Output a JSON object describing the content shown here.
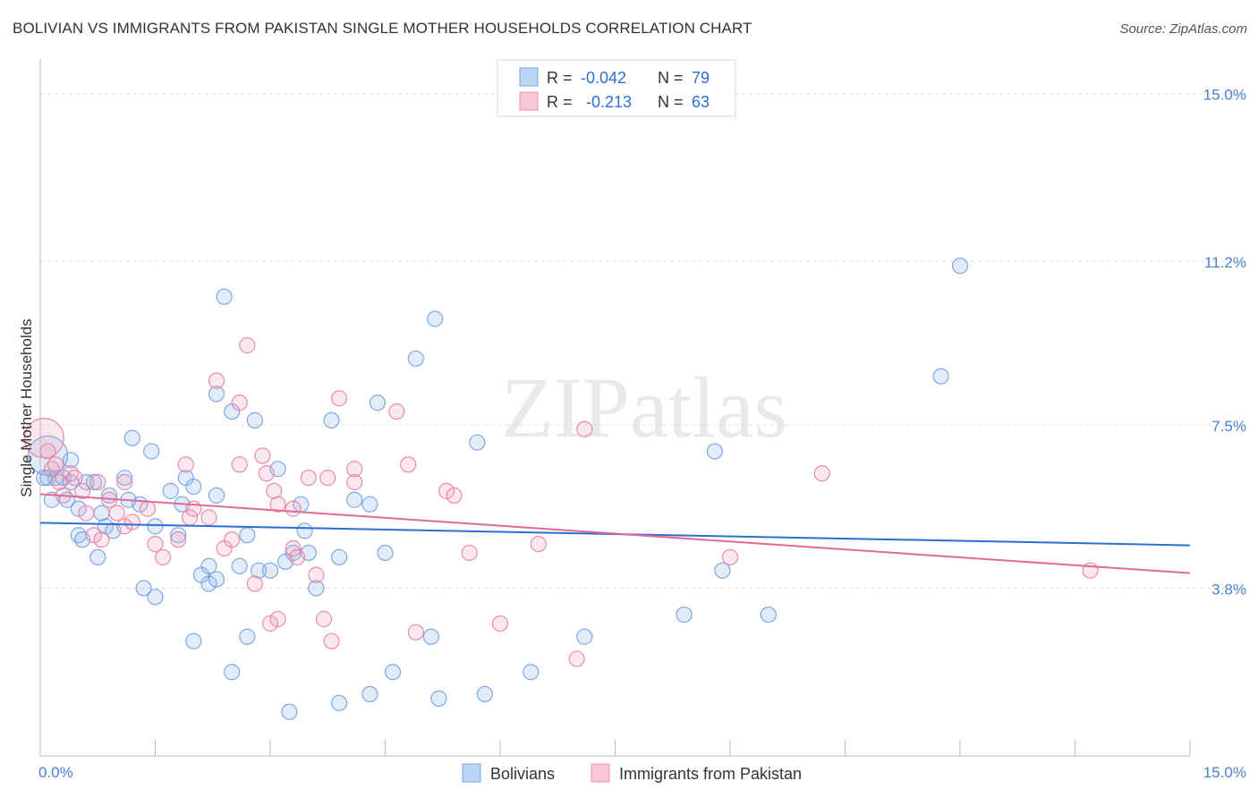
{
  "chart_data": {
    "type": "scatter",
    "title": "BOLIVIAN VS IMMIGRANTS FROM PAKISTAN SINGLE MOTHER HOUSEHOLDS CORRELATION CHART",
    "source": "Source: ZipAtlas.com",
    "ylabel": "Single Mother Households",
    "xlabel": "",
    "xlim": [
      0,
      15
    ],
    "ylim": [
      0,
      15.5
    ],
    "x_tick_labels": [
      "0.0%",
      "15.0%"
    ],
    "y_ticks": [
      3.8,
      7.5,
      11.2,
      15.0
    ],
    "y_tick_labels": [
      "3.8%",
      "7.5%",
      "11.2%",
      "15.0%"
    ],
    "grid": true,
    "watermark": "ZIPatlas",
    "legend": [
      {
        "label": "R = ",
        "r": "-0.042",
        "n_label": "N = ",
        "n": "79",
        "color": "#6fa0e0"
      },
      {
        "label": "R = ",
        "r": "-0.213",
        "n_label": "N = ",
        "n": "63",
        "color": "#e87fa3"
      }
    ],
    "series": [
      {
        "name": "Bolivians",
        "color": "#6fa0e0",
        "line_color": "#2b6fd1",
        "trend": {
          "x0": 0,
          "y0": 5.28,
          "x1": 15,
          "y1": 4.77
        },
        "points": [
          [
            0.1,
            6.8
          ],
          [
            0.1,
            6.3
          ],
          [
            0.2,
            6.3
          ],
          [
            0.3,
            6.3
          ],
          [
            0.15,
            5.8
          ],
          [
            0.35,
            5.8
          ],
          [
            0.4,
            6.7
          ],
          [
            0.5,
            5.6
          ],
          [
            0.5,
            5.0
          ],
          [
            0.55,
            4.9
          ],
          [
            0.6,
            6.2
          ],
          [
            0.7,
            6.2
          ],
          [
            0.75,
            4.5
          ],
          [
            0.8,
            5.5
          ],
          [
            0.85,
            5.2
          ],
          [
            0.9,
            5.9
          ],
          [
            0.95,
            5.1
          ],
          [
            1.1,
            6.3
          ],
          [
            1.15,
            5.8
          ],
          [
            1.2,
            7.2
          ],
          [
            1.3,
            5.7
          ],
          [
            1.35,
            3.8
          ],
          [
            1.45,
            6.9
          ],
          [
            1.5,
            5.2
          ],
          [
            1.5,
            3.6
          ],
          [
            1.7,
            6.0
          ],
          [
            1.8,
            5.0
          ],
          [
            1.85,
            5.7
          ],
          [
            1.9,
            6.3
          ],
          [
            2.0,
            6.1
          ],
          [
            2.0,
            2.6
          ],
          [
            2.1,
            4.1
          ],
          [
            2.2,
            3.9
          ],
          [
            2.2,
            4.3
          ],
          [
            2.3,
            4.0
          ],
          [
            2.3,
            5.9
          ],
          [
            2.3,
            8.2
          ],
          [
            2.4,
            10.4
          ],
          [
            2.5,
            1.9
          ],
          [
            2.5,
            7.8
          ],
          [
            2.6,
            4.3
          ],
          [
            2.7,
            5.0
          ],
          [
            2.7,
            2.7
          ],
          [
            2.8,
            7.6
          ],
          [
            2.85,
            4.2
          ],
          [
            3.0,
            4.2
          ],
          [
            3.1,
            6.5
          ],
          [
            3.2,
            4.4
          ],
          [
            3.25,
            1.0
          ],
          [
            3.3,
            4.6
          ],
          [
            3.4,
            5.7
          ],
          [
            3.45,
            5.1
          ],
          [
            3.5,
            4.6
          ],
          [
            3.6,
            3.8
          ],
          [
            3.8,
            7.6
          ],
          [
            3.9,
            4.5
          ],
          [
            3.9,
            1.2
          ],
          [
            4.1,
            5.8
          ],
          [
            4.3,
            1.4
          ],
          [
            4.3,
            5.7
          ],
          [
            4.4,
            8.0
          ],
          [
            4.5,
            4.6
          ],
          [
            4.6,
            1.9
          ],
          [
            4.9,
            9.0
          ],
          [
            5.1,
            2.7
          ],
          [
            5.15,
            9.9
          ],
          [
            5.2,
            1.3
          ],
          [
            5.7,
            7.1
          ],
          [
            5.8,
            1.4
          ],
          [
            6.4,
            1.9
          ],
          [
            7.1,
            2.7
          ],
          [
            8.4,
            3.2
          ],
          [
            8.8,
            6.9
          ],
          [
            8.9,
            4.2
          ],
          [
            9.5,
            3.2
          ],
          [
            11.75,
            8.6
          ],
          [
            12.0,
            11.1
          ],
          [
            0.05,
            6.3
          ],
          [
            0.4,
            6.2
          ]
        ]
      },
      {
        "name": "Immigrants from Pakistan",
        "color": "#e87fa3",
        "line_color": "#e0699a",
        "trend": {
          "x0": 0,
          "y0": 5.93,
          "x1": 15,
          "y1": 4.14
        },
        "points": [
          [
            0.05,
            7.2
          ],
          [
            0.1,
            6.9
          ],
          [
            0.15,
            6.5
          ],
          [
            0.25,
            6.2
          ],
          [
            0.3,
            5.9
          ],
          [
            0.4,
            6.4
          ],
          [
            0.45,
            6.3
          ],
          [
            0.55,
            6.0
          ],
          [
            0.6,
            5.5
          ],
          [
            0.7,
            5.0
          ],
          [
            0.75,
            6.2
          ],
          [
            0.8,
            4.9
          ],
          [
            0.9,
            5.8
          ],
          [
            1.0,
            5.5
          ],
          [
            1.1,
            5.2
          ],
          [
            1.1,
            6.2
          ],
          [
            1.2,
            5.3
          ],
          [
            1.4,
            5.6
          ],
          [
            1.5,
            4.8
          ],
          [
            1.6,
            4.5
          ],
          [
            1.8,
            4.9
          ],
          [
            1.9,
            6.6
          ],
          [
            1.95,
            5.4
          ],
          [
            2.0,
            5.6
          ],
          [
            2.2,
            5.4
          ],
          [
            2.3,
            8.5
          ],
          [
            2.4,
            4.7
          ],
          [
            2.5,
            4.9
          ],
          [
            2.6,
            6.6
          ],
          [
            2.6,
            8.0
          ],
          [
            2.7,
            9.3
          ],
          [
            2.8,
            3.9
          ],
          [
            2.9,
            6.8
          ],
          [
            2.95,
            6.4
          ],
          [
            3.0,
            3.0
          ],
          [
            3.05,
            6.0
          ],
          [
            3.1,
            3.1
          ],
          [
            3.1,
            5.7
          ],
          [
            3.3,
            4.7
          ],
          [
            3.3,
            5.6
          ],
          [
            3.35,
            4.5
          ],
          [
            3.5,
            6.3
          ],
          [
            3.6,
            4.1
          ],
          [
            3.7,
            3.1
          ],
          [
            3.75,
            6.3
          ],
          [
            3.8,
            2.6
          ],
          [
            3.9,
            8.1
          ],
          [
            4.1,
            6.2
          ],
          [
            4.1,
            6.5
          ],
          [
            4.65,
            7.8
          ],
          [
            4.8,
            6.6
          ],
          [
            4.9,
            2.8
          ],
          [
            5.3,
            6.0
          ],
          [
            5.4,
            5.9
          ],
          [
            5.6,
            4.6
          ],
          [
            6.0,
            3.0
          ],
          [
            6.5,
            4.8
          ],
          [
            7.0,
            2.2
          ],
          [
            7.1,
            7.4
          ],
          [
            9.0,
            4.5
          ],
          [
            10.2,
            6.4
          ],
          [
            13.7,
            4.2
          ],
          [
            0.2,
            6.6
          ]
        ]
      }
    ]
  }
}
